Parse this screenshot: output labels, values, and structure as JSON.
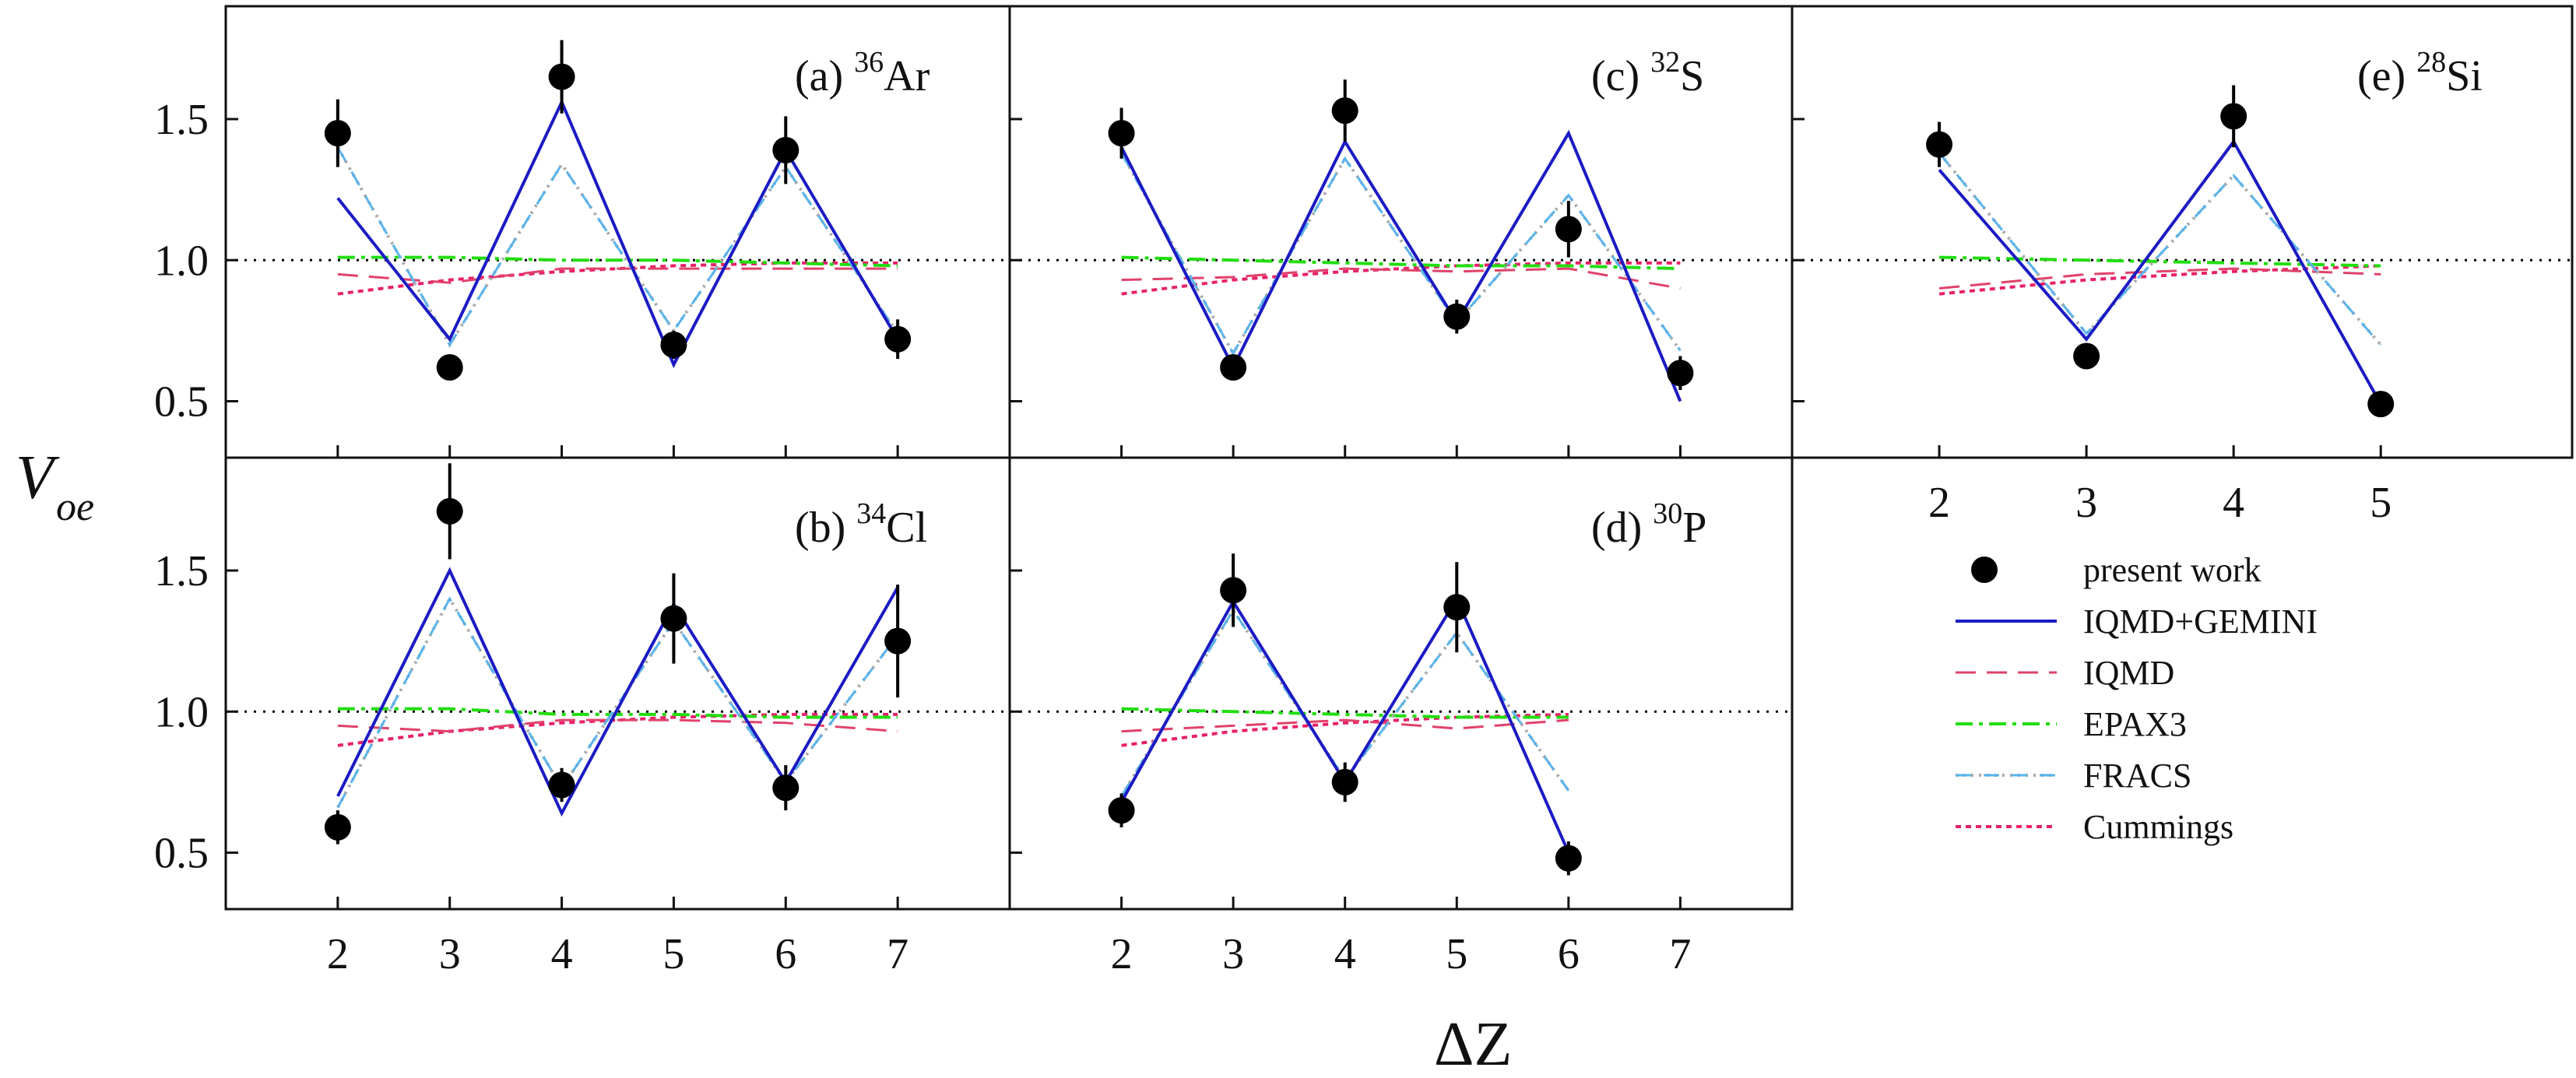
{
  "chart_data": {
    "type": "line",
    "ylabel": {
      "main": "V",
      "sub": "oe"
    },
    "xlabel": "ΔZ",
    "ylim": [
      0.3,
      1.9
    ],
    "yticks": [
      0.5,
      1.0,
      1.5
    ],
    "reference_line": 1.0,
    "legend": {
      "position": "bottom-right",
      "entries": [
        {
          "key": "data",
          "label": "present work"
        },
        {
          "key": "gemini",
          "label": "IQMD+GEMINI"
        },
        {
          "key": "iqmd",
          "label": "IQMD"
        },
        {
          "key": "epax",
          "label": "EPAX3"
        },
        {
          "key": "fracs",
          "label": "FRACS"
        },
        {
          "key": "cummings",
          "label": "Cummings"
        }
      ]
    },
    "colors": {
      "data": "#000000",
      "gemini": "#1b1bc4",
      "iqmd": "#e0426a",
      "epax": "#22dd11",
      "fracs_dash": "#5ab4ec",
      "fracs_dot": "#aaaaaa",
      "cummings": "#e8206a",
      "reference": "#000000"
    },
    "panels": [
      {
        "id": "a",
        "label": "(a)",
        "mass": "36",
        "element": "Ar",
        "xlim": [
          1,
          8
        ],
        "xticks": [],
        "data": {
          "x": [
            2,
            3,
            4,
            5,
            6,
            7
          ],
          "y": [
            1.45,
            0.62,
            1.65,
            0.7,
            1.39,
            0.72
          ],
          "err": [
            0.12,
            0.04,
            0.13,
            0.05,
            0.12,
            0.07
          ]
        },
        "gemini": {
          "x": [
            2,
            3,
            4,
            5,
            6,
            7
          ],
          "y": [
            1.22,
            0.72,
            1.56,
            0.63,
            1.39,
            0.72
          ]
        },
        "fracs": {
          "x": [
            2,
            3,
            4,
            5,
            6,
            7
          ],
          "y": [
            1.4,
            0.7,
            1.34,
            0.75,
            1.33,
            0.74
          ]
        },
        "iqmd": {
          "x": [
            2,
            3,
            4,
            5,
            6,
            7
          ],
          "y": [
            0.95,
            0.92,
            0.97,
            0.97,
            0.97,
            0.97
          ]
        },
        "epax": {
          "x": [
            2,
            3,
            4,
            5,
            6,
            7
          ],
          "y": [
            1.01,
            1.01,
            1.0,
            1.0,
            0.99,
            0.98
          ]
        },
        "cummings": {
          "x": [
            2,
            3,
            4,
            5,
            6,
            7
          ],
          "y": [
            0.88,
            0.93,
            0.96,
            0.98,
            0.99,
            0.99
          ]
        }
      },
      {
        "id": "b",
        "label": "(b)",
        "mass": "34",
        "element": "Cl",
        "xlim": [
          1,
          8
        ],
        "xticks": [
          2,
          3,
          4,
          5,
          6,
          7
        ],
        "data": {
          "x": [
            2,
            3,
            4,
            5,
            6,
            7
          ],
          "y": [
            0.59,
            1.71,
            0.74,
            1.33,
            0.73,
            1.25
          ],
          "err": [
            0.06,
            0.17,
            0.06,
            0.16,
            0.08,
            0.2
          ]
        },
        "gemini": {
          "x": [
            2,
            3,
            4,
            5,
            6,
            7
          ],
          "y": [
            0.7,
            1.5,
            0.64,
            1.38,
            0.75,
            1.44
          ]
        },
        "fracs": {
          "x": [
            2,
            3,
            4,
            5,
            6,
            7
          ],
          "y": [
            0.66,
            1.4,
            0.73,
            1.32,
            0.75,
            1.27
          ]
        },
        "iqmd": {
          "x": [
            2,
            3,
            4,
            5,
            6,
            7
          ],
          "y": [
            0.95,
            0.93,
            0.97,
            0.97,
            0.96,
            0.93
          ]
        },
        "epax": {
          "x": [
            2,
            3,
            4,
            5,
            6,
            7
          ],
          "y": [
            1.01,
            1.01,
            0.99,
            0.99,
            0.98,
            0.98
          ]
        },
        "cummings": {
          "x": [
            2,
            3,
            4,
            5,
            6,
            7
          ],
          "y": [
            0.88,
            0.93,
            0.96,
            0.98,
            0.99,
            0.99
          ]
        }
      },
      {
        "id": "c",
        "label": "(c)",
        "mass": "32",
        "element": "S",
        "xlim": [
          1,
          8
        ],
        "xticks": [],
        "data": {
          "x": [
            2,
            3,
            4,
            5,
            6,
            7
          ],
          "y": [
            1.45,
            0.62,
            1.53,
            0.8,
            1.11,
            0.6
          ],
          "err": [
            0.09,
            0.04,
            0.11,
            0.06,
            0.1,
            0.06
          ]
        },
        "gemini": {
          "x": [
            2,
            3,
            4,
            5,
            6,
            7
          ],
          "y": [
            1.4,
            0.62,
            1.42,
            0.78,
            1.45,
            0.5
          ]
        },
        "fracs": {
          "x": [
            2,
            3,
            4,
            5,
            6,
            7
          ],
          "y": [
            1.38,
            0.67,
            1.36,
            0.78,
            1.23,
            0.68
          ]
        },
        "iqmd": {
          "x": [
            2,
            3,
            4,
            5,
            6,
            7
          ],
          "y": [
            0.93,
            0.94,
            0.97,
            0.96,
            0.97,
            0.9
          ]
        },
        "epax": {
          "x": [
            2,
            3,
            4,
            5,
            6,
            7
          ],
          "y": [
            1.01,
            1.0,
            0.99,
            0.98,
            0.98,
            0.97
          ]
        },
        "cummings": {
          "x": [
            2,
            3,
            4,
            5,
            6,
            7
          ],
          "y": [
            0.88,
            0.93,
            0.96,
            0.98,
            0.99,
            0.99
          ]
        }
      },
      {
        "id": "d",
        "label": "(d)",
        "mass": "30",
        "element": "P",
        "xlim": [
          1,
          8
        ],
        "xticks": [
          2,
          3,
          4,
          5,
          6,
          7
        ],
        "data": {
          "x": [
            2,
            3,
            4,
            5,
            6
          ],
          "y": [
            0.65,
            1.43,
            0.75,
            1.37,
            0.48
          ],
          "err": [
            0.06,
            0.13,
            0.07,
            0.16,
            0.06
          ]
        },
        "gemini": {
          "x": [
            2,
            3,
            4,
            5,
            6
          ],
          "y": [
            0.68,
            1.39,
            0.75,
            1.4,
            0.5
          ]
        },
        "fracs": {
          "x": [
            2,
            3,
            4,
            5,
            6
          ],
          "y": [
            0.7,
            1.36,
            0.76,
            1.28,
            0.72
          ]
        },
        "iqmd": {
          "x": [
            2,
            3,
            4,
            5,
            6
          ],
          "y": [
            0.93,
            0.95,
            0.97,
            0.94,
            0.97
          ]
        },
        "epax": {
          "x": [
            2,
            3,
            4,
            5,
            6
          ],
          "y": [
            1.01,
            1.0,
            0.99,
            0.98,
            0.98
          ]
        },
        "cummings": {
          "x": [
            2,
            3,
            4,
            5,
            6
          ],
          "y": [
            0.88,
            0.93,
            0.96,
            0.98,
            0.99
          ]
        }
      },
      {
        "id": "e",
        "label": "(e)",
        "mass": "28",
        "element": "Si",
        "xlim": [
          1,
          6.3
        ],
        "xticks": [
          2,
          3,
          4,
          5
        ],
        "data": {
          "x": [
            2,
            3,
            4,
            5
          ],
          "y": [
            1.41,
            0.66,
            1.51,
            0.49
          ],
          "err": [
            0.08,
            0.04,
            0.11,
            0.04
          ]
        },
        "gemini": {
          "x": [
            2,
            3,
            4,
            5
          ],
          "y": [
            1.32,
            0.72,
            1.42,
            0.49
          ]
        },
        "fracs": {
          "x": [
            2,
            3,
            4,
            5
          ],
          "y": [
            1.38,
            0.74,
            1.3,
            0.7
          ]
        },
        "iqmd": {
          "x": [
            2,
            3,
            4,
            5
          ],
          "y": [
            0.9,
            0.95,
            0.97,
            0.95
          ]
        },
        "epax": {
          "x": [
            2,
            3,
            4,
            5
          ],
          "y": [
            1.01,
            1.0,
            0.99,
            0.98
          ]
        },
        "cummings": {
          "x": [
            2,
            3,
            4,
            5
          ],
          "y": [
            0.88,
            0.93,
            0.96,
            0.98
          ]
        }
      }
    ]
  }
}
